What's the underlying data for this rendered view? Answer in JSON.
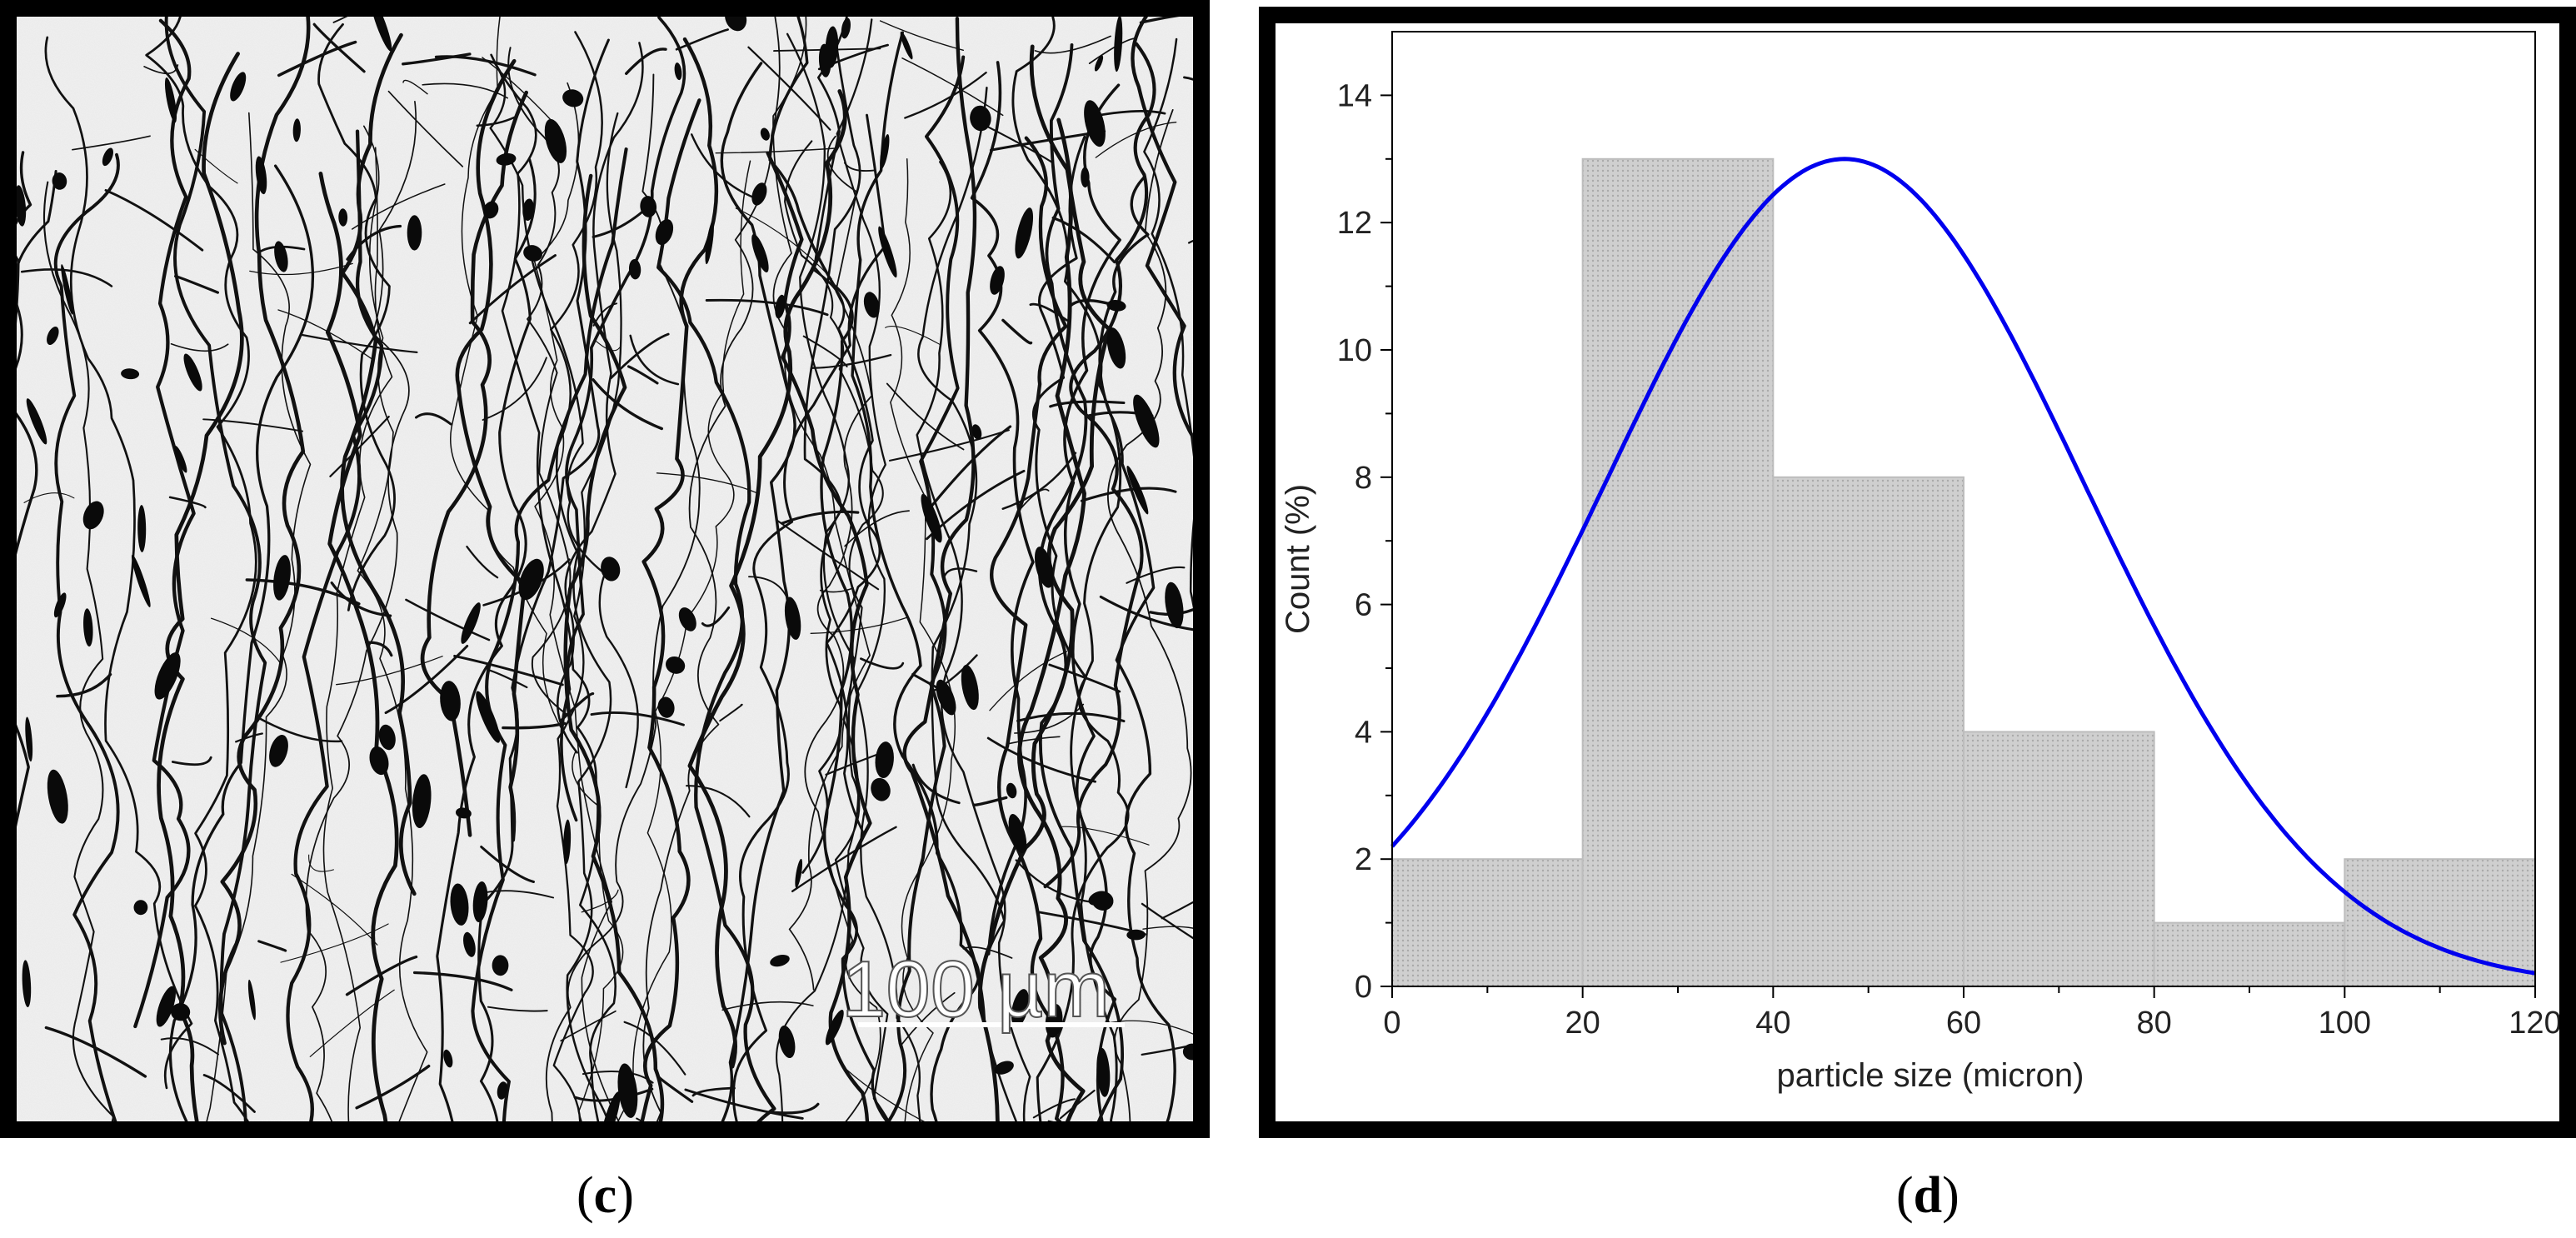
{
  "panel_c": {
    "caption_letter": "c",
    "scale_bar_label": "100 µm"
  },
  "panel_d": {
    "caption_letter": "d"
  },
  "chart_data": {
    "type": "bar",
    "subtype": "histogram with normal fit curve",
    "bins": [
      {
        "start": 0,
        "end": 20,
        "count": 2
      },
      {
        "start": 20,
        "end": 40,
        "count": 13
      },
      {
        "start": 40,
        "end": 60,
        "count": 8
      },
      {
        "start": 60,
        "end": 80,
        "count": 4
      },
      {
        "start": 80,
        "end": 100,
        "count": 1
      },
      {
        "start": 100,
        "end": 120,
        "count": 2
      }
    ],
    "fit_curve": {
      "type": "normal",
      "mean": 47.5,
      "sd": 25.2,
      "peak": 13.0,
      "color": "#0000ee"
    },
    "bar_color": "#c8c8c8",
    "xlabel": "particle size (micron)",
    "ylabel": "Count (%)",
    "xlim": [
      0,
      120
    ],
    "ylim": [
      0,
      15
    ],
    "xticks": [
      0,
      20,
      40,
      60,
      80,
      100,
      120
    ],
    "yticks": [
      0,
      2,
      4,
      6,
      8,
      10,
      12,
      14
    ],
    "grid": false,
    "legend": "none"
  }
}
